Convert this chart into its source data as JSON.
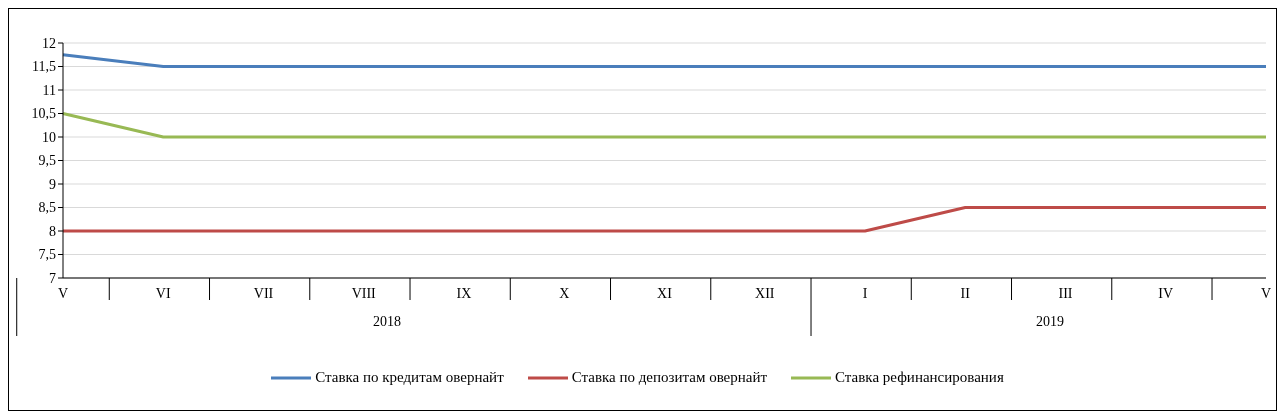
{
  "chart_data": {
    "type": "line",
    "categories": [
      "V",
      "VI",
      "VII",
      "VIII",
      "IX",
      "X",
      "XI",
      "XII",
      "I",
      "II",
      "III",
      "IV",
      "V"
    ],
    "series": [
      {
        "name": "Ставка по кредитам овернайт",
        "color": "#4a7ebb",
        "values": [
          11.75,
          11.5,
          11.5,
          11.5,
          11.5,
          11.5,
          11.5,
          11.5,
          11.5,
          11.5,
          11.5,
          11.5,
          11.5
        ]
      },
      {
        "name": "Ставка по депозитам овернайт",
        "color": "#be4b48",
        "values": [
          8,
          8,
          8,
          8,
          8,
          8,
          8,
          8,
          8,
          8.5,
          8.5,
          8.5,
          8.5
        ]
      },
      {
        "name": "Ставка рефинансирования",
        "color": "#98b954",
        "values": [
          10.5,
          10,
          10,
          10,
          10,
          10,
          10,
          10,
          10,
          10,
          10,
          10,
          10
        ]
      }
    ],
    "ylim": [
      7,
      12
    ],
    "yticks": [
      7,
      {
        "value": 7.5,
        "label": "7,5"
      },
      8,
      {
        "value": 8.5,
        "label": "8,5"
      },
      9,
      {
        "value": 9.5,
        "label": "9,5"
      },
      10,
      {
        "value": 10.5,
        "label": "10,5"
      },
      11,
      {
        "value": 11.5,
        "label": "11,5"
      },
      12
    ],
    "annotations": [
      "2018",
      "2019"
    ],
    "grid": "y",
    "legend": "bottom"
  }
}
